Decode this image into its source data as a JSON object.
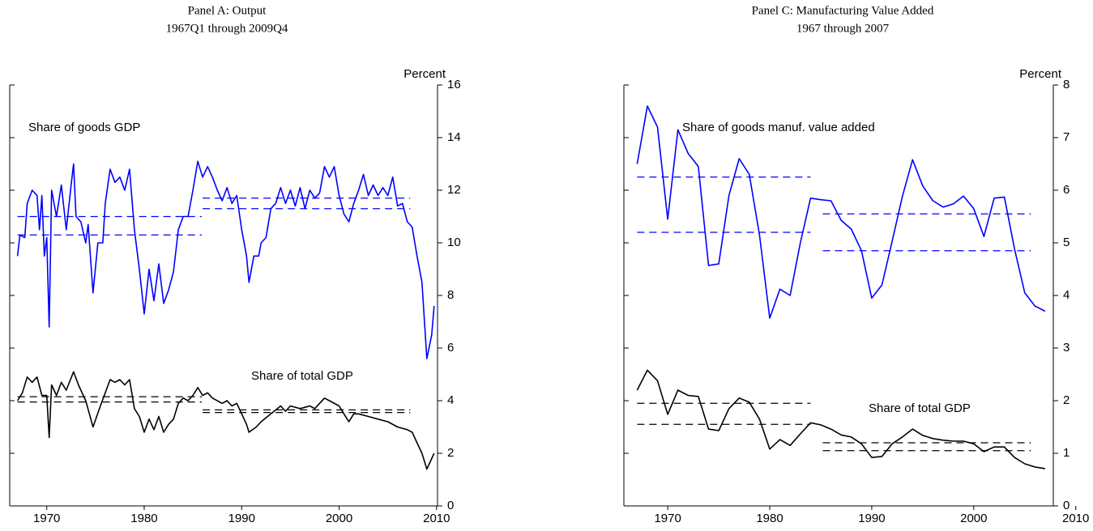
{
  "chart_data": [
    {
      "type": "line",
      "title": "Panel A: Output",
      "subtitle": "1967Q1 through 2009Q4",
      "y_label": "Percent",
      "xlim": [
        1966.2,
        2010.1
      ],
      "xticks": [
        1970,
        1980,
        1990,
        2000,
        2010
      ],
      "ylim": [
        0,
        16
      ],
      "yticks": [
        0,
        2,
        4,
        6,
        8,
        10,
        12,
        14,
        16
      ],
      "series": [
        {
          "name": "Share of goods GDP",
          "color": "#0000ff",
          "x": [
            1967,
            1967.25,
            1967.75,
            1968,
            1968.5,
            1969,
            1969.25,
            1969.5,
            1969.75,
            1970,
            1970.25,
            1970.5,
            1971,
            1971.5,
            1972,
            1972.5,
            1972.75,
            1973,
            1973.5,
            1974,
            1974.25,
            1974.75,
            1975.25,
            1975.75,
            1976,
            1976.5,
            1977,
            1977.5,
            1978,
            1978.5,
            1979,
            1979.5,
            1980,
            1980.5,
            1981,
            1981.5,
            1982,
            1982.5,
            1983,
            1983.5,
            1984,
            1984.5,
            1985,
            1985.5,
            1986,
            1986.5,
            1987,
            1987.5,
            1988,
            1988.5,
            1989,
            1989.5,
            1990,
            1990.5,
            1990.75,
            1991.25,
            1991.75,
            1992,
            1992.5,
            1993,
            1993.5,
            1994,
            1994.5,
            1995,
            1995.5,
            1996,
            1996.5,
            1997,
            1997.5,
            1998,
            1998.5,
            1999,
            1999.5,
            2000,
            2000.5,
            2001,
            2001.5,
            2002,
            2002.5,
            2003,
            2003.5,
            2004,
            2004.5,
            2005,
            2005.5,
            2006,
            2006.5,
            2007,
            2007.5,
            2008,
            2008.5,
            2009,
            2009.5,
            2009.75
          ],
          "values": [
            9.5,
            10.3,
            10.2,
            11.5,
            12.0,
            11.8,
            10.5,
            11.8,
            9.5,
            10.2,
            6.8,
            12.0,
            11.0,
            12.2,
            10.5,
            12.2,
            13.0,
            11.0,
            10.8,
            10.0,
            10.7,
            8.1,
            10.0,
            10.0,
            11.5,
            12.8,
            12.3,
            12.5,
            12.0,
            12.8,
            10.5,
            9.0,
            7.3,
            9.0,
            7.8,
            9.2,
            7.7,
            8.2,
            8.9,
            10.5,
            11.0,
            11.0,
            12.0,
            13.1,
            12.5,
            12.9,
            12.5,
            12.0,
            11.6,
            12.1,
            11.5,
            11.8,
            10.5,
            9.5,
            8.5,
            9.5,
            9.5,
            10.0,
            10.2,
            11.3,
            11.5,
            12.1,
            11.5,
            12.0,
            11.4,
            12.1,
            11.3,
            12.0,
            11.7,
            11.9,
            12.9,
            12.5,
            12.9,
            11.8,
            11.1,
            10.8,
            11.5,
            12.0,
            12.6,
            11.8,
            12.2,
            11.8,
            12.1,
            11.8,
            12.5,
            11.4,
            11.5,
            10.8,
            10.6,
            9.5,
            8.5,
            5.6,
            6.5,
            7.6
          ]
        },
        {
          "name": "Share of total GDP",
          "color": "#000000",
          "x": [
            1967,
            1967.5,
            1968,
            1968.5,
            1969,
            1969.5,
            1970,
            1970.25,
            1970.5,
            1971,
            1971.5,
            1972,
            1972.75,
            1973.25,
            1974,
            1974.75,
            1975.5,
            1976,
            1976.5,
            1977,
            1977.5,
            1978,
            1978.5,
            1979,
            1979.5,
            1980,
            1980.5,
            1981,
            1981.5,
            1982,
            1982.5,
            1983,
            1983.5,
            1984,
            1984.5,
            1985,
            1985.5,
            1986,
            1986.5,
            1987,
            1988,
            1988.5,
            1989,
            1989.5,
            1990,
            1990.5,
            1990.75,
            1991.5,
            1992,
            1993,
            1994,
            1994.5,
            1995,
            1996,
            1997,
            1997.5,
            1998,
            1998.5,
            1999,
            2000,
            2000.5,
            2001,
            2001.5,
            2002,
            2003,
            2004,
            2005,
            2006,
            2007,
            2007.5,
            2008,
            2008.5,
            2009,
            2009.75
          ],
          "values": [
            4.0,
            4.3,
            4.9,
            4.7,
            4.9,
            4.2,
            4.2,
            2.6,
            4.6,
            4.2,
            4.7,
            4.4,
            5.1,
            4.6,
            4.0,
            3.0,
            3.8,
            4.3,
            4.8,
            4.7,
            4.8,
            4.6,
            4.8,
            3.7,
            3.4,
            2.8,
            3.3,
            2.9,
            3.4,
            2.8,
            3.1,
            3.3,
            3.9,
            4.1,
            4.0,
            4.2,
            4.5,
            4.2,
            4.3,
            4.1,
            3.9,
            4.0,
            3.8,
            3.9,
            3.5,
            3.1,
            2.8,
            3.0,
            3.2,
            3.5,
            3.8,
            3.6,
            3.8,
            3.7,
            3.8,
            3.7,
            3.9,
            4.1,
            4.0,
            3.8,
            3.5,
            3.2,
            3.5,
            3.5,
            3.4,
            3.3,
            3.2,
            3.0,
            2.9,
            2.8,
            2.4,
            2.0,
            1.4,
            2.0
          ]
        }
      ],
      "reference_lines": [
        {
          "color": "#0000ff",
          "y": 11.0,
          "x": [
            1967,
            1985.9
          ]
        },
        {
          "color": "#0000ff",
          "y": 10.3,
          "x": [
            1967,
            1985.9
          ]
        },
        {
          "color": "#0000ff",
          "y": 11.7,
          "x": [
            1986,
            2007.3
          ]
        },
        {
          "color": "#0000ff",
          "y": 11.3,
          "x": [
            1986,
            2007.3
          ]
        },
        {
          "color": "#000000",
          "y": 4.15,
          "x": [
            1967,
            1985.9
          ]
        },
        {
          "color": "#000000",
          "y": 3.95,
          "x": [
            1967,
            1985.9
          ]
        },
        {
          "color": "#000000",
          "y": 3.65,
          "x": [
            1986,
            2007.3
          ]
        },
        {
          "color": "#000000",
          "y": 3.55,
          "x": [
            1986,
            2007.3
          ]
        }
      ]
    },
    {
      "type": "line",
      "title": "Panel C: Manufacturing Value Added",
      "subtitle": "1967 through 2007",
      "y_label": "Percent",
      "xlim": [
        1965.7,
        2007.8
      ],
      "xticks": [
        1970,
        1980,
        1990,
        2000,
        2010
      ],
      "ylim": [
        0,
        8
      ],
      "yticks": [
        0,
        1,
        2,
        3,
        4,
        5,
        6,
        7,
        8
      ],
      "series": [
        {
          "name": "Share of goods manuf. value added",
          "color": "#0000ff",
          "x": [
            1967,
            1968,
            1969,
            1970,
            1971,
            1972,
            1973,
            1974,
            1975,
            1976,
            1977,
            1978,
            1979,
            1980,
            1981,
            1982,
            1983,
            1984,
            1985,
            1986,
            1987,
            1988,
            1989,
            1990,
            1991,
            1992,
            1993,
            1994,
            1995,
            1996,
            1997,
            1998,
            1999,
            2000,
            2001,
            2002,
            2003,
            2004,
            2005,
            2006,
            2007
          ],
          "values": [
            6.5,
            7.6,
            7.2,
            5.45,
            7.15,
            6.7,
            6.45,
            4.57,
            4.6,
            5.9,
            6.6,
            6.3,
            5.15,
            3.57,
            4.12,
            4.0,
            5.0,
            5.85,
            5.82,
            5.8,
            5.43,
            5.26,
            4.85,
            3.95,
            4.2,
            5.03,
            5.88,
            6.58,
            6.08,
            5.8,
            5.68,
            5.74,
            5.89,
            5.65,
            5.12,
            5.85,
            5.87,
            4.88,
            4.05,
            3.8,
            3.7
          ]
        },
        {
          "name": "Share of total GDP",
          "color": "#000000",
          "x": [
            1967,
            1968,
            1969,
            1970,
            1971,
            1972,
            1973,
            1974,
            1975,
            1976,
            1977,
            1978,
            1979,
            1980,
            1981,
            1982,
            1983,
            1984,
            1985,
            1986,
            1987,
            1988,
            1989,
            1990,
            1991,
            1992,
            1993,
            1994,
            1995,
            1996,
            1997,
            1998,
            1999,
            2000,
            2001,
            2002,
            2003,
            2004,
            2005,
            2006,
            2007
          ],
          "values": [
            2.2,
            2.58,
            2.38,
            1.74,
            2.2,
            2.1,
            2.08,
            1.46,
            1.43,
            1.85,
            2.05,
            1.97,
            1.65,
            1.08,
            1.26,
            1.15,
            1.37,
            1.58,
            1.54,
            1.46,
            1.35,
            1.31,
            1.18,
            0.92,
            0.94,
            1.18,
            1.31,
            1.46,
            1.34,
            1.28,
            1.25,
            1.23,
            1.23,
            1.18,
            1.03,
            1.12,
            1.12,
            0.92,
            0.8,
            0.74,
            0.71
          ]
        }
      ],
      "reference_lines": [
        {
          "color": "#0000ff",
          "y": 6.25,
          "x": [
            1967,
            1984
          ]
        },
        {
          "color": "#0000ff",
          "y": 5.2,
          "x": [
            1967,
            1984
          ]
        },
        {
          "color": "#0000ff",
          "y": 5.55,
          "x": [
            1985.2,
            2005.6
          ]
        },
        {
          "color": "#0000ff",
          "y": 4.85,
          "x": [
            1985.2,
            2005.6
          ]
        },
        {
          "color": "#000000",
          "y": 1.95,
          "x": [
            1967,
            1984
          ]
        },
        {
          "color": "#000000",
          "y": 1.55,
          "x": [
            1967,
            1984
          ]
        },
        {
          "color": "#000000",
          "y": 1.2,
          "x": [
            1985.2,
            2005.6
          ]
        },
        {
          "color": "#000000",
          "y": 1.05,
          "x": [
            1985.2,
            2005.6
          ]
        }
      ]
    }
  ]
}
